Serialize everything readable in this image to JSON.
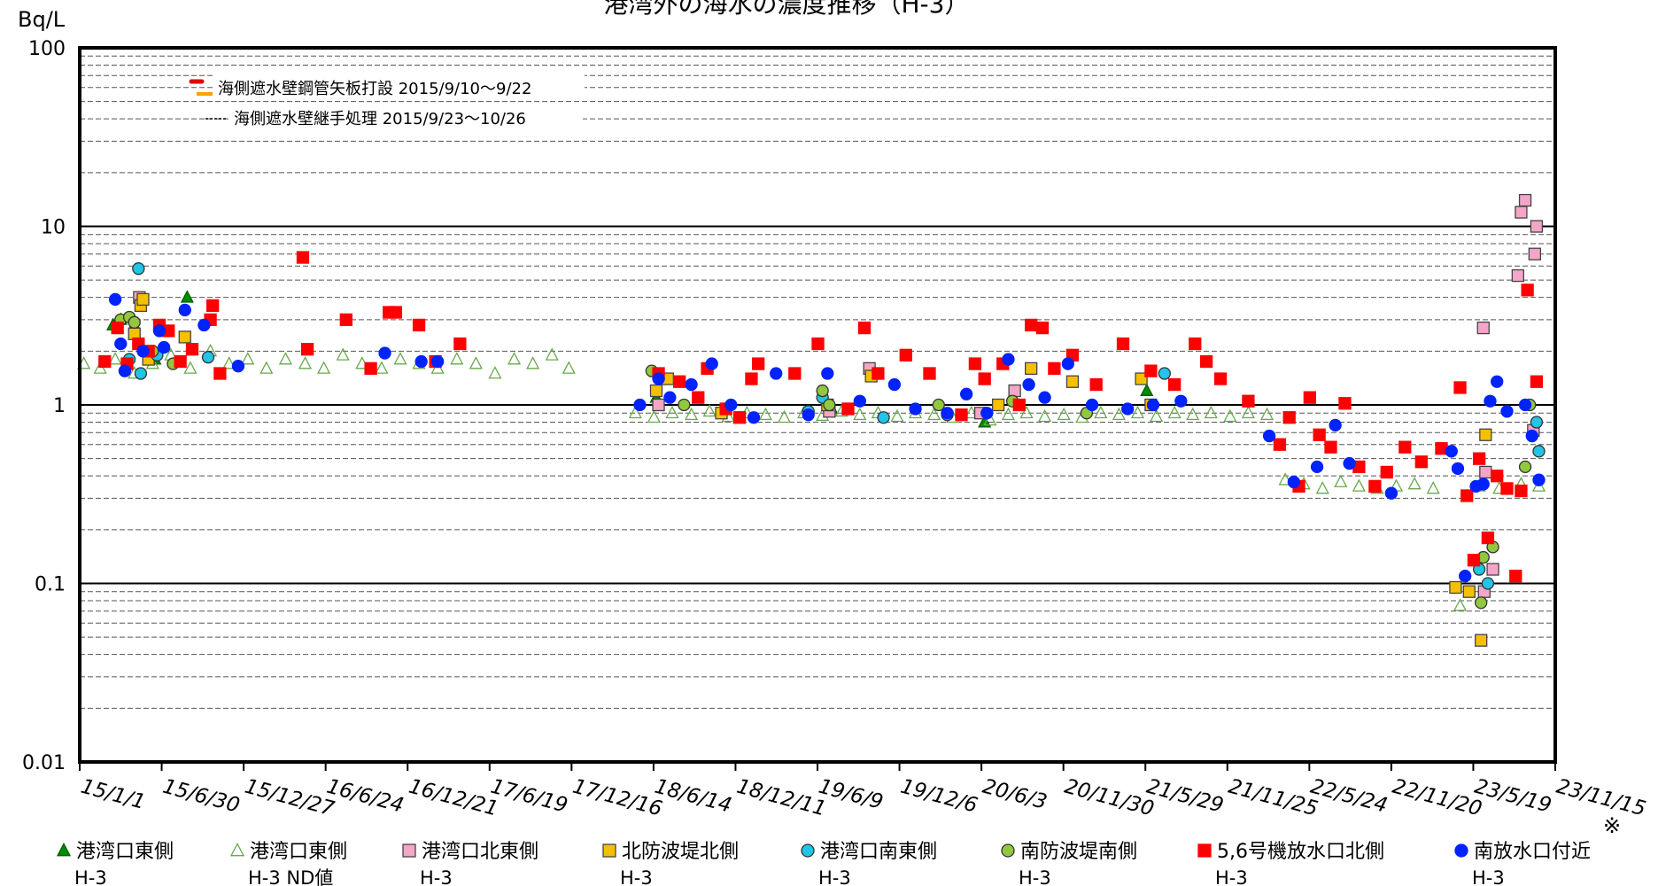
{
  "chart_data": {
    "type": "scatter",
    "title": "港湾外の海水の濃度推移（H-3）",
    "y_label": "Bq/L",
    "note": "※",
    "annotations": [
      "海側遮水壁鋼管矢板打設 2015/9/10～9/22",
      "海側遮水壁継手処理 2015/9/23～10/26"
    ],
    "y_log": true,
    "grid": true,
    "minor_grid": true,
    "legend": "bottom",
    "ylim": [
      0.01,
      100
    ],
    "yticks": [
      0.01,
      0.1,
      1,
      10,
      100
    ],
    "xlim": [
      "2015-01-01",
      "2023-11-15"
    ],
    "xticks": [
      {
        "value": "2015-01-01",
        "label": "15/1/1"
      },
      {
        "value": "2015-06-30",
        "label": "15/6/30"
      },
      {
        "value": "2015-12-27",
        "label": "15/12/27"
      },
      {
        "value": "2016-06-24",
        "label": "16/6/24"
      },
      {
        "value": "2016-12-21",
        "label": "16/12/21"
      },
      {
        "value": "2017-06-19",
        "label": "17/6/19"
      },
      {
        "value": "2017-12-16",
        "label": "17/12/16"
      },
      {
        "value": "2018-06-14",
        "label": "18/6/14"
      },
      {
        "value": "2018-12-11",
        "label": "18/12/11"
      },
      {
        "value": "2019-06-09",
        "label": "19/6/9"
      },
      {
        "value": "2019-12-06",
        "label": "19/12/6"
      },
      {
        "value": "2020-06-03",
        "label": "20/6/3"
      },
      {
        "value": "2020-11-30",
        "label": "20/11/30"
      },
      {
        "value": "2021-05-29",
        "label": "21/5/29"
      },
      {
        "value": "2021-11-25",
        "label": "21/11/25"
      },
      {
        "value": "2022-05-24",
        "label": "22/5/24"
      },
      {
        "value": "2022-11-20",
        "label": "22/11/20"
      },
      {
        "value": "2023-05-19",
        "label": "23/5/19"
      },
      {
        "value": "2023-11-15",
        "label": "23/11/15"
      }
    ],
    "series": [
      {
        "name": "港湾口東側",
        "subname": "H-3",
        "marker": "triangle",
        "color": "#008c00",
        "edgecolor": "#006000",
        "x": [
          "2015-03-15",
          "2015-04-01",
          "2015-05-01",
          "2015-06-15",
          "2015-08-25",
          "2018-06-20",
          "2019-07-10",
          "2020-06-10",
          "2021-06-01"
        ],
        "values": [
          2.8,
          3.0,
          2.8,
          1.8,
          4.0,
          1.1,
          0.95,
          0.8,
          1.2
        ]
      },
      {
        "name": "港湾口東側",
        "subname": "H-3 ND値",
        "marker": "triangle-open",
        "color": "none",
        "edgecolor": "#6aa84f",
        "x": [
          "2015-01-10",
          "2015-02-15",
          "2015-03-20",
          "2015-05-01",
          "2015-06-10",
          "2015-07-20",
          "2015-09-01",
          "2015-10-15",
          "2015-11-25",
          "2016-01-05",
          "2016-02-15",
          "2016-03-28",
          "2016-05-10",
          "2016-06-20",
          "2016-08-01",
          "2016-09-12",
          "2016-10-25",
          "2016-12-05",
          "2017-01-15",
          "2017-02-25",
          "2017-04-08",
          "2017-05-20",
          "2017-07-01",
          "2017-08-12",
          "2017-09-22",
          "2017-11-03",
          "2017-12-10",
          "2018-05-05",
          "2018-06-15",
          "2018-07-25",
          "2018-09-05",
          "2018-10-15",
          "2018-11-25",
          "2019-01-05",
          "2019-02-15",
          "2019-03-28",
          "2019-05-10",
          "2019-06-20",
          "2019-08-01",
          "2019-09-10",
          "2019-10-20",
          "2019-12-01",
          "2020-01-10",
          "2020-02-20",
          "2020-04-01",
          "2020-05-12",
          "2020-06-22",
          "2020-08-01",
          "2020-09-10",
          "2020-10-20",
          "2020-12-01",
          "2021-01-10",
          "2021-02-20",
          "2021-04-01",
          "2021-05-12",
          "2021-06-22",
          "2021-08-01",
          "2021-09-10",
          "2021-10-20",
          "2021-12-01",
          "2022-01-10",
          "2022-02-20",
          "2022-04-01",
          "2022-05-12",
          "2022-06-22",
          "2022-08-01",
          "2022-09-10",
          "2022-10-20",
          "2022-12-01",
          "2023-01-10",
          "2023-02-20",
          "2023-04-20",
          "2023-06-01",
          "2023-07-15",
          "2023-09-01",
          "2023-10-10"
        ],
        "values": [
          1.7,
          1.6,
          1.8,
          1.5,
          1.7,
          1.9,
          1.6,
          2.0,
          1.7,
          1.8,
          1.6,
          1.8,
          1.7,
          1.6,
          1.9,
          1.7,
          1.6,
          1.8,
          1.7,
          1.6,
          1.8,
          1.7,
          1.5,
          1.8,
          1.7,
          1.9,
          1.6,
          0.9,
          0.85,
          0.9,
          0.88,
          0.92,
          0.86,
          0.9,
          0.88,
          0.85,
          0.9,
          0.87,
          0.92,
          0.88,
          0.9,
          0.86,
          0.9,
          0.88,
          0.85,
          0.9,
          0.82,
          0.88,
          0.9,
          0.86,
          0.88,
          0.85,
          0.9,
          0.88,
          0.9,
          0.86,
          0.9,
          0.88,
          0.9,
          0.86,
          0.9,
          0.88,
          0.38,
          0.36,
          0.34,
          0.37,
          0.35,
          0.34,
          0.35,
          0.36,
          0.34,
          0.075,
          0.35,
          0.34,
          0.36,
          0.35
        ]
      },
      {
        "name": "港湾口北東側",
        "subname": "H-3",
        "marker": "square",
        "color": "#f4a6c8",
        "edgecolor": "#444444",
        "x": [
          "2015-05-12",
          "2018-06-25",
          "2019-07-05",
          "2019-10-01",
          "2020-06-01",
          "2020-08-15",
          "2023-06-10",
          "2023-06-15",
          "2023-07-01",
          "2023-06-12",
          "2023-09-01",
          "2023-09-10",
          "2023-10-05",
          "2023-10-01",
          "2023-08-25",
          "2023-09-28"
        ],
        "values": [
          4.0,
          1.0,
          0.92,
          1.6,
          0.9,
          1.2,
          2.7,
          0.42,
          0.12,
          0.09,
          12,
          14,
          10,
          7.0,
          5.3,
          0.72
        ]
      },
      {
        "name": "北防波堤北側",
        "subname": "H-3",
        "marker": "square",
        "color": "#f5c000",
        "edgecolor": "#444444",
        "x": [
          "2015-05-01",
          "2015-05-15",
          "2015-05-20",
          "2015-06-01",
          "2015-08-20",
          "2018-06-20",
          "2018-07-15",
          "2018-11-10",
          "2019-07-01",
          "2019-10-05",
          "2020-07-10",
          "2020-09-20",
          "2020-12-20",
          "2021-05-20",
          "2021-06-10",
          "2023-04-10",
          "2023-05-10",
          "2023-06-05",
          "2023-06-15"
        ],
        "values": [
          2.5,
          3.6,
          3.9,
          1.8,
          2.4,
          1.2,
          1.4,
          0.9,
          1.0,
          1.45,
          1.0,
          1.6,
          1.35,
          1.4,
          1.0,
          0.095,
          0.09,
          0.048,
          0.68
        ]
      },
      {
        "name": "港湾口南東側",
        "subname": "H-3",
        "marker": "circle",
        "color": "#22c4e8",
        "edgecolor": "#333333",
        "x": [
          "2015-04-20",
          "2015-05-10",
          "2015-05-15",
          "2015-06-20",
          "2015-10-10",
          "2019-05-20",
          "2019-06-20",
          "2019-11-01",
          "2020-03-20",
          "2021-07-10",
          "2023-06-01",
          "2023-06-20",
          "2023-10-10",
          "2023-10-05"
        ],
        "values": [
          1.8,
          5.8,
          1.5,
          1.9,
          1.85,
          0.92,
          1.1,
          0.85,
          0.88,
          1.5,
          0.12,
          0.1,
          0.55,
          0.8
        ]
      },
      {
        "name": "南防波堤南側",
        "subname": "H-3",
        "marker": "circle",
        "color": "#92c83e",
        "edgecolor": "#333333",
        "x": [
          "2015-04-01",
          "2015-04-20",
          "2015-05-01",
          "2015-06-10",
          "2015-07-25",
          "2018-06-10",
          "2018-08-20",
          "2019-06-20",
          "2019-07-05",
          "2020-03-01",
          "2020-08-10",
          "2021-01-20",
          "2023-06-10",
          "2023-06-05",
          "2023-07-01",
          "2023-09-10",
          "2023-09-20"
        ],
        "values": [
          3.0,
          3.1,
          2.9,
          2.0,
          1.7,
          1.55,
          1.0,
          1.2,
          1.0,
          1.0,
          1.05,
          0.9,
          0.14,
          0.078,
          0.16,
          0.45,
          1.0
        ]
      },
      {
        "name": "5,6号機放水口北側",
        "subname": "H-3",
        "marker": "square",
        "color": "#ff0000",
        "edgecolor": "#ff0000",
        "x": [
          "2015-02-25",
          "2015-03-25",
          "2015-04-15",
          "2015-05-10",
          "2015-06-01",
          "2015-06-25",
          "2015-07-15",
          "2015-08-10",
          "2015-09-05",
          "2015-10-15",
          "2015-10-20",
          "2015-11-05",
          "2016-05-05",
          "2016-05-15",
          "2016-08-08",
          "2016-10-01",
          "2016-11-10",
          "2016-11-25",
          "2017-01-15",
          "2017-02-20",
          "2017-04-15",
          "2018-06-25",
          "2018-08-10",
          "2018-09-20",
          "2018-10-10",
          "2018-11-20",
          "2018-12-20",
          "2019-01-15",
          "2019-01-30",
          "2019-04-20",
          "2019-06-10",
          "2019-08-15",
          "2019-09-20",
          "2019-10-20",
          "2019-12-20",
          "2020-02-10",
          "2020-04-20",
          "2020-05-20",
          "2020-06-10",
          "2020-07-20",
          "2020-08-25",
          "2020-09-20",
          "2020-10-15",
          "2020-11-10",
          "2020-12-20",
          "2021-02-10",
          "2021-04-10",
          "2021-06-10",
          "2021-08-01",
          "2021-09-15",
          "2021-10-10",
          "2021-11-10",
          "2022-01-10",
          "2022-03-20",
          "2022-04-10",
          "2022-05-01",
          "2022-05-25",
          "2022-06-15",
          "2022-07-10",
          "2022-08-10",
          "2022-09-10",
          "2022-10-15",
          "2022-11-10",
          "2022-12-20",
          "2023-01-25",
          "2023-03-10",
          "2023-04-20",
          "2023-05-05",
          "2023-05-20",
          "2023-06-01",
          "2023-06-20",
          "2023-07-10",
          "2023-08-01",
          "2023-08-20",
          "2023-09-01",
          "2023-09-15",
          "2023-10-05"
        ],
        "values": [
          1.75,
          2.7,
          1.7,
          2.2,
          2.0,
          2.8,
          2.6,
          1.75,
          2.05,
          3.0,
          3.6,
          1.5,
          6.7,
          2.05,
          3.0,
          1.6,
          3.3,
          3.3,
          2.8,
          1.75,
          2.2,
          1.5,
          1.35,
          1.1,
          1.6,
          0.95,
          0.85,
          1.4,
          1.7,
          1.5,
          2.2,
          0.95,
          2.7,
          1.5,
          1.9,
          1.5,
          0.88,
          1.7,
          1.4,
          1.7,
          1.0,
          2.8,
          2.7,
          1.6,
          1.9,
          1.3,
          2.2,
          1.55,
          1.3,
          2.2,
          1.75,
          1.4,
          1.05,
          0.6,
          0.85,
          0.35,
          1.1,
          0.68,
          0.58,
          1.02,
          0.45,
          0.35,
          0.42,
          0.58,
          0.48,
          0.57,
          1.25,
          0.31,
          0.135,
          0.5,
          0.18,
          0.4,
          0.34,
          0.11,
          0.33,
          4.4,
          1.35
        ]
      },
      {
        "name": "南放水口付近",
        "subname": "H-3",
        "marker": "circle",
        "color": "#0022ff",
        "edgecolor": "#0022ff",
        "x": [
          "2015-03-20",
          "2015-04-01",
          "2015-04-10",
          "2015-05-20",
          "2015-06-25",
          "2015-07-05",
          "2015-08-20",
          "2015-10-01",
          "2015-12-15",
          "2016-11-01",
          "2017-01-20",
          "2017-02-25",
          "2018-05-15",
          "2018-06-25",
          "2018-07-20",
          "2018-09-05",
          "2018-10-20",
          "2018-12-01",
          "2019-01-20",
          "2019-03-10",
          "2019-05-20",
          "2019-07-01",
          "2019-09-10",
          "2019-11-25",
          "2020-01-10",
          "2020-03-20",
          "2020-05-01",
          "2020-06-15",
          "2020-08-01",
          "2020-09-15",
          "2020-10-20",
          "2020-12-10",
          "2021-02-01",
          "2021-04-20",
          "2021-06-15",
          "2021-08-15",
          "2022-02-25",
          "2022-04-20",
          "2022-06-10",
          "2022-07-20",
          "2022-08-20",
          "2022-11-20",
          "2023-04-01",
          "2023-04-15",
          "2023-05-01",
          "2023-05-25",
          "2023-06-10",
          "2023-06-25",
          "2023-07-10",
          "2023-08-01",
          "2023-09-10",
          "2023-09-25",
          "2023-10-10"
        ],
        "values": [
          3.9,
          2.2,
          1.55,
          2.0,
          2.6,
          2.1,
          3.4,
          2.8,
          1.65,
          1.95,
          1.75,
          1.75,
          1.0,
          1.4,
          1.1,
          1.3,
          1.7,
          1.0,
          0.85,
          1.5,
          0.88,
          1.5,
          1.05,
          1.3,
          0.95,
          0.9,
          1.15,
          0.9,
          1.8,
          1.3,
          1.1,
          1.7,
          1.0,
          0.95,
          1.0,
          1.05,
          0.67,
          0.37,
          0.45,
          0.77,
          0.47,
          0.32,
          0.55,
          0.44,
          0.11,
          0.35,
          0.36,
          1.05,
          1.35,
          0.92,
          1.0,
          0.67,
          0.38
        ]
      }
    ]
  }
}
